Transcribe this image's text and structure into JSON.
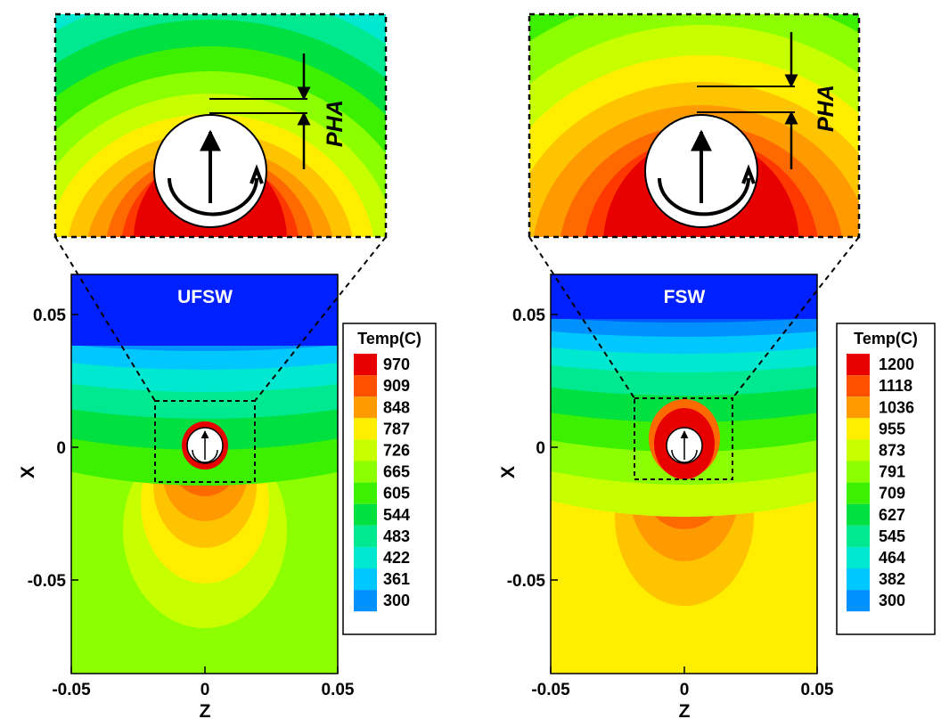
{
  "chart_data": [
    {
      "type": "contour",
      "title": "UFSW",
      "xlabel": "Z",
      "ylabel": "X",
      "xlim": [
        -0.05,
        0.05
      ],
      "ylim": [
        -0.085,
        0.065
      ],
      "x_ticks": [
        "-0.05",
        "0",
        "0.05"
      ],
      "y_ticks": [
        "0.05",
        "0",
        "-0.05"
      ],
      "x_tick_values": [
        -0.05,
        0,
        0.05
      ],
      "y_tick_values": [
        0.05,
        0,
        -0.05
      ],
      "legend_title": "Temp(C)",
      "legend_levels": [
        "970",
        "909",
        "848",
        "787",
        "726",
        "665",
        "605",
        "544",
        "483",
        "422",
        "361",
        "300"
      ],
      "annotation": "PHA",
      "contour_colors": [
        "#e80000",
        "#ff3800",
        "#ff6a00",
        "#ff9a00",
        "#ffc400",
        "#ffee00",
        "#c8ff00",
        "#8cff00",
        "#3cf000",
        "#00e040",
        "#00e890",
        "#00e8d0",
        "#00c8ff",
        "#0090ff",
        "#0058ff",
        "#0020ff"
      ]
    },
    {
      "type": "contour",
      "title": "FSW",
      "xlabel": "Z",
      "ylabel": "X",
      "xlim": [
        -0.05,
        0.05
      ],
      "ylim": [
        -0.085,
        0.065
      ],
      "x_ticks": [
        "-0.05",
        "0",
        "0.05"
      ],
      "y_ticks": [
        "0.05",
        "0",
        "-0.05"
      ],
      "x_tick_values": [
        -0.05,
        0,
        0.05
      ],
      "y_tick_values": [
        0.05,
        0,
        -0.05
      ],
      "legend_title": "Temp(C)",
      "legend_levels": [
        "1200",
        "1118",
        "1036",
        "955",
        "873",
        "791",
        "709",
        "627",
        "545",
        "464",
        "382",
        "300"
      ],
      "annotation": "PHA",
      "contour_colors": [
        "#e80000",
        "#ff3800",
        "#ff6a00",
        "#ff9a00",
        "#ffc400",
        "#ffee00",
        "#c8ff00",
        "#8cff00",
        "#3cf000",
        "#00e040",
        "#00e890",
        "#00e8d0",
        "#00c8ff",
        "#0090ff",
        "#0058ff",
        "#0020ff"
      ]
    }
  ]
}
